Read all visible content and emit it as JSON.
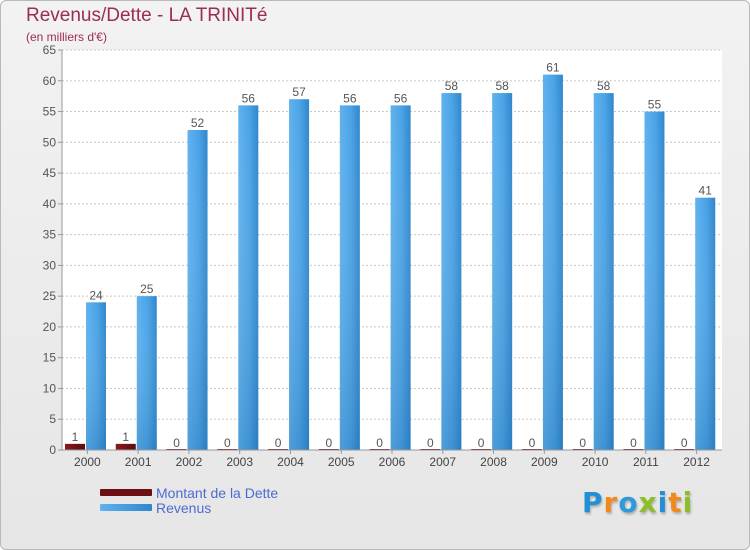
{
  "header": {
    "title": "Revenus/Dette - LA TRINITé",
    "subtitle": "(en milliers d'€)"
  },
  "legend": {
    "items": [
      {
        "label": "Montant de la Dette",
        "color": "#6b0f13"
      },
      {
        "label": "Revenus",
        "color": "#4aa3e6"
      }
    ]
  },
  "logo": {
    "letters": [
      "P",
      "r",
      "o",
      "x",
      "i",
      "t",
      "i"
    ],
    "colors": [
      "#1f8fd6",
      "#f08a1c",
      "#2e9ad8",
      "#8cbf26",
      "#1f8fd6",
      "#f08a1c",
      "#8cbf26"
    ]
  },
  "chart_data": {
    "type": "bar",
    "title": "Revenus/Dette - LA TRINITé",
    "subtitle": "(en milliers d'€)",
    "xlabel": "",
    "ylabel": "",
    "categories": [
      "2000",
      "2001",
      "2002",
      "2003",
      "2004",
      "2005",
      "2006",
      "2007",
      "2008",
      "2009",
      "2010",
      "2011",
      "2012"
    ],
    "series": [
      {
        "name": "Montant de la Dette",
        "color": "#6b0f13",
        "values": [
          1,
          1,
          0,
          0,
          0,
          0,
          0,
          0,
          0,
          0,
          0,
          0,
          0
        ]
      },
      {
        "name": "Revenus",
        "color": "#4aa3e6",
        "values": [
          24,
          25,
          52,
          56,
          57,
          56,
          56,
          58,
          58,
          61,
          58,
          55,
          41
        ]
      }
    ],
    "ylim": [
      0,
      65
    ],
    "yticks": [
      0,
      5,
      10,
      15,
      20,
      25,
      30,
      35,
      40,
      45,
      50,
      55,
      60,
      65
    ],
    "grid": true,
    "legend": "bottom-left"
  }
}
